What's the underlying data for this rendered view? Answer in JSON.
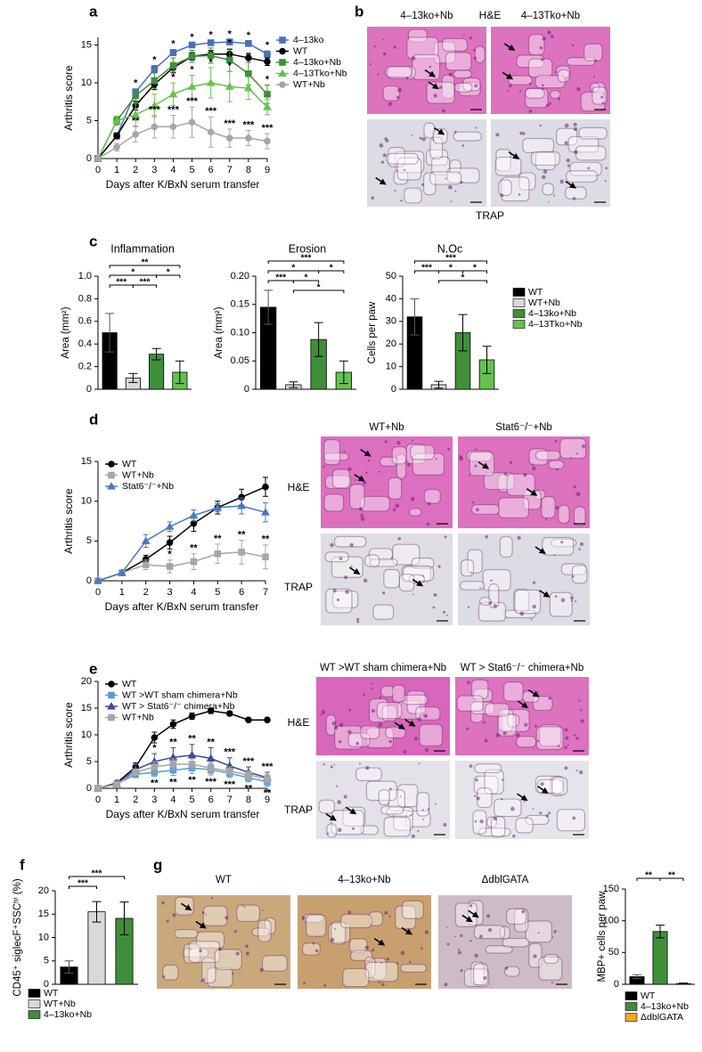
{
  "chart_data": [
    {
      "type": "line",
      "label": "a",
      "xlabel": "Days after K/BxN serum transfer",
      "ylabel": "Arthritis score",
      "x": [
        0,
        1,
        2,
        3,
        4,
        5,
        6,
        7,
        8,
        9
      ],
      "xlim": [
        0,
        9
      ],
      "xticks": [
        0,
        1,
        2,
        3,
        4,
        5,
        6,
        7,
        8,
        9
      ],
      "ylim": [
        0,
        16
      ],
      "yticks": [
        0,
        5,
        10,
        15
      ],
      "legend": "right",
      "series": [
        {
          "name": "4–13ko",
          "color": "#4a6fc0",
          "marker": "square",
          "values": [
            0,
            3,
            8.8,
            11.8,
            14,
            15,
            15.3,
            15.4,
            15.2,
            13.8
          ],
          "errors": [
            0,
            0.3,
            0.4,
            0.5,
            0.4,
            0.3,
            0.3,
            0.3,
            0.3,
            0.4
          ],
          "stars": [
            null,
            null,
            "*",
            "*",
            "*",
            "*",
            "*",
            "*",
            "*",
            "*"
          ]
        },
        {
          "name": "WT",
          "color": "#000000",
          "marker": "circle",
          "values": [
            0,
            3,
            7,
            9.8,
            12,
            13.5,
            13.8,
            13.8,
            13.3,
            12.8
          ],
          "errors": [
            0,
            0.4,
            0.6,
            0.7,
            0.6,
            0.5,
            0.5,
            0.6,
            0.6,
            0.5
          ],
          "stars": [
            null,
            null,
            null,
            null,
            null,
            null,
            null,
            null,
            null,
            null
          ]
        },
        {
          "name": "4–13ko+Nb",
          "color": "#3f8f3a",
          "marker": "square",
          "values": [
            0,
            5,
            8.3,
            10.3,
            12.3,
            13.5,
            13.6,
            13,
            11.2,
            8.5
          ],
          "errors": [
            0,
            0.5,
            0.8,
            1,
            1,
            0.8,
            1,
            1.5,
            1.5,
            1.2
          ],
          "stars": [
            null,
            null,
            null,
            null,
            null,
            null,
            null,
            "*",
            "*",
            "*"
          ]
        },
        {
          "name": "4–13Tko+Nb",
          "color": "#66c24f",
          "marker": "triangle",
          "values": [
            0,
            5,
            5.8,
            7,
            8.5,
            9.5,
            10,
            9.5,
            9.3,
            6.8
          ],
          "errors": [
            0,
            0.6,
            1.5,
            1.5,
            1.5,
            1.5,
            2,
            2,
            1.5,
            1
          ],
          "stars": [
            null,
            null,
            null,
            "*",
            "*",
            "*",
            "*",
            "*",
            null,
            null
          ]
        },
        {
          "name": "WT+Nb",
          "color": "#a6a6a6",
          "marker": "circle",
          "values": [
            0,
            1.5,
            3.2,
            4.2,
            4.2,
            4.8,
            3.5,
            2.7,
            2.7,
            2.3
          ],
          "errors": [
            0,
            0.5,
            1,
            1.5,
            1.5,
            2,
            2,
            1.2,
            1,
            1
          ],
          "stars": [
            null,
            null,
            "**",
            "***",
            "***",
            "***",
            "***",
            "***",
            "***",
            "***"
          ]
        }
      ]
    },
    {
      "type": "histology",
      "label": "b",
      "column_labels": [
        "4–13ko+Nb",
        "4–13Tko+Nb"
      ],
      "row_labels": [
        "H&E",
        "TRAP"
      ],
      "colors": [
        [
          "#dd72bf",
          "#dd72bf"
        ],
        [
          "#dcdce4",
          "#dcdce4"
        ]
      ]
    },
    {
      "type": "bar",
      "label": "c",
      "title": "Inflammation",
      "ylabel": "Area (mm²)",
      "values": [
        0.5,
        0.1,
        0.31,
        0.15
      ],
      "errors": [
        0.17,
        0.04,
        0.05,
        0.1
      ],
      "colors": [
        "#000000",
        "#d9d9d9",
        "#3f8f3a",
        "#66c24f"
      ],
      "ylim": [
        0,
        1
      ],
      "yticks": [
        0,
        0.2,
        0.4,
        0.6,
        0.8,
        {
          "value": 1,
          "label": "1.0"
        }
      ],
      "brackets": [
        {
          "from": 0,
          "to": 3,
          "label": "**"
        },
        {
          "from": 0,
          "to": 2,
          "label": "*"
        },
        {
          "from": 0,
          "to": 1,
          "label": "***"
        },
        {
          "from": 1,
          "to": 2,
          "label": "***"
        },
        {
          "from": 2,
          "to": 3,
          "label": "*"
        }
      ]
    },
    {
      "type": "bar",
      "title": "Erosion",
      "ylabel": "Area (mm²)",
      "values": [
        0.145,
        0.008,
        0.088,
        0.03
      ],
      "errors": [
        0.03,
        0.005,
        0.03,
        0.02
      ],
      "colors": [
        "#000000",
        "#d9d9d9",
        "#3f8f3a",
        "#66c24f"
      ],
      "ylim": [
        0,
        0.2
      ],
      "yticks": [
        0,
        0.05,
        {
          "value": 0.1,
          "label": "0.10"
        },
        0.15,
        {
          "value": 0.2,
          "label": "0.20"
        }
      ],
      "brackets": [
        {
          "from": 0,
          "to": 3,
          "label": "***"
        },
        {
          "from": 0,
          "to": 2,
          "label": "*"
        },
        {
          "from": 0,
          "to": 1,
          "label": "***"
        },
        {
          "from": 1,
          "to": 2,
          "label": "*"
        },
        {
          "from": 2,
          "to": 3,
          "label": "*"
        },
        {
          "from": 1,
          "to": 3,
          "label": "*"
        }
      ]
    },
    {
      "type": "bar",
      "title": "N.Oc",
      "ylabel": "Cells per paw",
      "categories": [
        "WT",
        "WT+Nb",
        "4–13ko+Nb",
        "4–13Tko+Nb"
      ],
      "values": [
        32,
        2,
        25,
        13
      ],
      "errors": [
        8,
        1.5,
        8,
        6
      ],
      "colors": [
        "#000000",
        "#d9d9d9",
        "#3f8f3a",
        "#66c24f"
      ],
      "ylim": [
        0,
        50
      ],
      "yticks": [
        0,
        10,
        20,
        30,
        40,
        50
      ],
      "brackets": [
        {
          "from": 0,
          "to": 3,
          "label": "***"
        },
        {
          "from": 0,
          "to": 1,
          "label": "***"
        },
        {
          "from": 1,
          "to": 2,
          "label": "*"
        },
        {
          "from": 2,
          "to": 3,
          "label": "*"
        },
        {
          "from": 1,
          "to": 3,
          "label": "*"
        }
      ]
    },
    {
      "type": "line",
      "label": "d",
      "xlabel": "Days after K/BxN serum transfer",
      "ylabel": "Arthritis score",
      "x": [
        0,
        1,
        2,
        3,
        4,
        5,
        6,
        7
      ],
      "xlim": [
        0,
        7
      ],
      "xticks": [
        0,
        1,
        2,
        3,
        4,
        5,
        6,
        7
      ],
      "ylim": [
        0,
        15
      ],
      "yticks": [
        0,
        5,
        10,
        15
      ],
      "legend": "upper left",
      "series": [
        {
          "name": "WT",
          "color": "#000000",
          "marker": "circle",
          "values": [
            0,
            1,
            2.7,
            4.8,
            7.2,
            9.2,
            10.5,
            11.8
          ],
          "errors": [
            0,
            0.3,
            0.5,
            0.8,
            1,
            0.8,
            1,
            1.2
          ],
          "stars": [
            null,
            null,
            null,
            null,
            null,
            null,
            null,
            null
          ]
        },
        {
          "name": "WT+Nb",
          "color": "#a6a6a6",
          "marker": "square",
          "values": [
            0,
            1,
            2,
            1.8,
            2.4,
            3.4,
            3.6,
            3
          ],
          "errors": [
            0,
            0.3,
            0.6,
            0.8,
            1,
            1.2,
            1.5,
            1.5
          ],
          "stars": [
            null,
            null,
            null,
            "*",
            "**",
            "**",
            "**",
            "**"
          ]
        },
        {
          "name": "Stat6⁻/⁻+Nb",
          "color": "#4a78bf",
          "marker": "triangle",
          "values": [
            0,
            1,
            5,
            6.8,
            8.2,
            9.2,
            9.4,
            8.6
          ],
          "errors": [
            0,
            0.3,
            0.8,
            0.6,
            0.7,
            0.5,
            1,
            1.2
          ],
          "stars": [
            null,
            null,
            null,
            null,
            null,
            null,
            null,
            null
          ]
        }
      ]
    },
    {
      "type": "histology",
      "column_labels": [
        "WT+Nb",
        "Stat6⁻/⁻+Nb"
      ],
      "row_labels": [
        "H&E",
        "TRAP"
      ],
      "colors": [
        [
          "#dd6fc0",
          "#dd72bf"
        ],
        [
          "#dedee2",
          "#dcdce4"
        ]
      ]
    },
    {
      "type": "line",
      "label": "e",
      "xlabel": "Days after K/BxN serum transfer",
      "ylabel": "Arthritis score",
      "x": [
        0,
        1,
        2,
        3,
        4,
        5,
        6,
        7,
        8,
        9
      ],
      "xlim": [
        0,
        9
      ],
      "xticks": [
        0,
        1,
        2,
        3,
        4,
        5,
        6,
        7,
        8,
        9
      ],
      "ylim": [
        0,
        20
      ],
      "yticks": [
        0,
        5,
        10,
        15,
        20
      ],
      "legend": "upper left",
      "series": [
        {
          "name": "WT",
          "color": "#000000",
          "marker": "circle",
          "values": [
            0,
            1,
            4,
            9.5,
            12,
            13.5,
            14.5,
            14,
            12.8,
            12.8
          ],
          "errors": [
            0,
            0.3,
            0.8,
            1,
            0.8,
            0.6,
            0.5,
            0.4,
            0.3,
            0.3
          ],
          "stars": [
            null,
            null,
            null,
            null,
            null,
            null,
            null,
            null,
            null,
            null
          ]
        },
        {
          "name": "WT >WT sham chimera+Nb",
          "color": "#5b9bd5",
          "marker": "square",
          "values": [
            0,
            0.8,
            2.6,
            3,
            3.4,
            3.8,
            3.5,
            2.8,
            2,
            1.2
          ],
          "errors": [
            0,
            0.3,
            0.6,
            0.8,
            1,
            1,
            1,
            0.8,
            0.8,
            0.8
          ],
          "star_side": "below",
          "stars": [
            null,
            null,
            null,
            "**",
            "**",
            "**",
            "***",
            "***",
            "**",
            "**"
          ]
        },
        {
          "name": "WT > Stat6⁻/⁻ chimera+Nb",
          "color": "#3b4a9a",
          "marker": "triangle",
          "values": [
            0,
            0.8,
            3.5,
            5,
            5.8,
            6.2,
            5.6,
            4.2,
            3,
            2
          ],
          "errors": [
            0,
            0.3,
            1,
            1.5,
            1.8,
            2,
            2,
            1.5,
            1,
            1
          ],
          "stars": [
            null,
            null,
            null,
            "*",
            "**",
            "**",
            "**",
            "***",
            "***",
            "***"
          ]
        },
        {
          "name": "WT+Nb",
          "color": "#a6a6a6",
          "marker": "square",
          "values": [
            0,
            0.8,
            3,
            4,
            4.5,
            4.5,
            3.8,
            3.2,
            2.5,
            1.8
          ],
          "errors": [
            0,
            0.3,
            0.6,
            1,
            1,
            1,
            1,
            0.8,
            0.8,
            0.8
          ],
          "stars": [
            null,
            null,
            null,
            null,
            null,
            null,
            null,
            null,
            null,
            null
          ]
        }
      ]
    },
    {
      "type": "histology",
      "column_labels": [
        "WT >WT sham chimera+Nb",
        "WT > Stat6⁻/⁻ chimera+Nb"
      ],
      "row_labels": [
        "H&E",
        "TRAP"
      ],
      "colors": [
        [
          "#d866bb",
          "#dd72bf"
        ],
        [
          "#e2e2e8",
          "#e4e4ea"
        ]
      ]
    },
    {
      "type": "bar",
      "label": "f",
      "ylabel": "CD45⁺ siglecF⁺SSCʰⁱ (%)",
      "categories": [
        "WT",
        "WT+Nb",
        "4–13ko+Nb"
      ],
      "values": [
        3.7,
        15.5,
        14.1
      ],
      "errors": [
        1.3,
        2.2,
        3.5
      ],
      "colors": [
        "#000000",
        "#d9d9d9",
        "#3f8f3a"
      ],
      "ylim": [
        0,
        20
      ],
      "yticks": [
        0,
        5,
        10,
        15,
        20
      ],
      "brackets": [
        {
          "from": 0,
          "to": 2,
          "label": "***"
        },
        {
          "from": 0,
          "to": 1,
          "label": "***"
        }
      ]
    },
    {
      "type": "histology",
      "label": "g",
      "column_labels": [
        "WT",
        "4–13ko+Nb",
        "ΔdblGATA"
      ],
      "colors": [
        [
          "#c9a97c",
          "#c8a070",
          "#cdbcc6"
        ]
      ]
    },
    {
      "type": "bar",
      "ylabel": "MBP+ cells per paw",
      "categories": [
        "WT",
        "4–13ko+Nb",
        "ΔdblGATA"
      ],
      "values": [
        12,
        83,
        1
      ],
      "errors": [
        3,
        10,
        1
      ],
      "colors": [
        "#000000",
        "#3f8f3a",
        "#f5a623"
      ],
      "ylim": [
        0,
        150
      ],
      "yticks": [
        0,
        50,
        100,
        150
      ],
      "brackets": [
        {
          "from": 0,
          "to": 1,
          "label": "**"
        },
        {
          "from": 1,
          "to": 2,
          "label": "**"
        }
      ]
    }
  ]
}
